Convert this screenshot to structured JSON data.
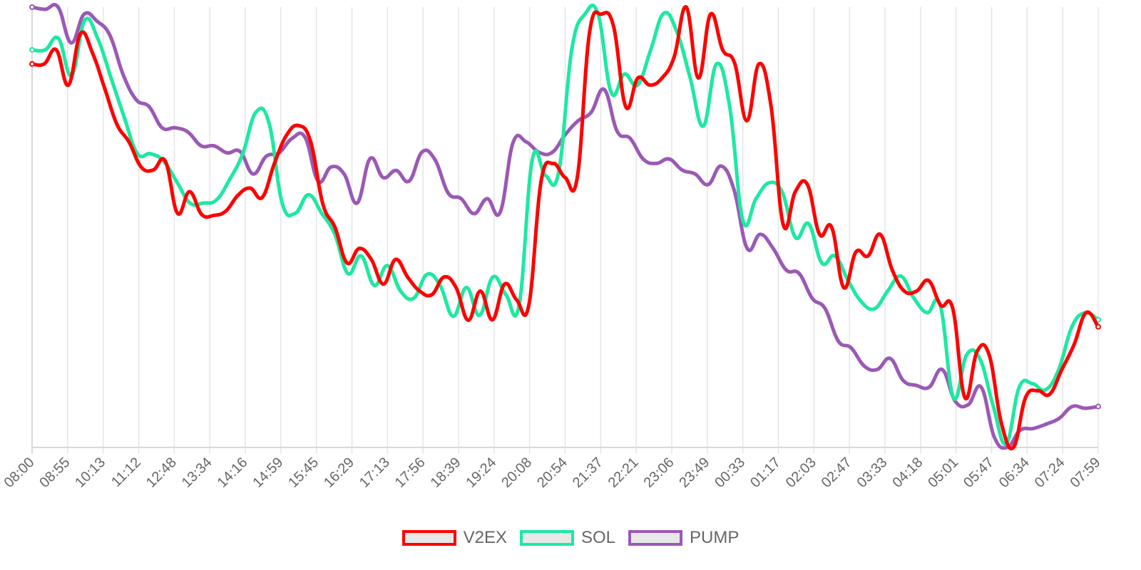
{
  "chart_data": {
    "type": "line",
    "x_tick_labels": [
      "08:00",
      "08:55",
      "10:13",
      "11:12",
      "12:48",
      "13:34",
      "14:16",
      "14:59",
      "15:45",
      "16:29",
      "17:13",
      "17:56",
      "18:39",
      "19:24",
      "20:08",
      "20:54",
      "21:37",
      "22:21",
      "23:06",
      "23:49",
      "00:33",
      "01:17",
      "02:03",
      "02:47",
      "03:33",
      "04:18",
      "05:01",
      "05:47",
      "06:34",
      "07:24",
      "07:59"
    ],
    "ylim": [
      0,
      100
    ],
    "grid": "vertical",
    "legend_position": "bottom",
    "series": [
      {
        "name": "V2EX",
        "color": "#ff0000",
        "values": [
          87.1,
          87.1,
          90.3,
          82.3,
          94.0,
          89.5,
          81.5,
          73.4,
          69.4,
          63.7,
          63.0,
          65.0,
          53.2,
          58.1,
          52.9,
          52.7,
          53.7,
          57.3,
          58.9,
          56.8,
          64.5,
          70.9,
          73.1,
          69.4,
          55.3,
          50.0,
          41.9,
          45.2,
          42.7,
          37.1,
          42.7,
          38.7,
          35.5,
          34.7,
          38.7,
          36.3,
          28.9,
          35.5,
          29.0,
          37.1,
          33.5,
          32.3,
          60.2,
          64.5,
          61.3,
          61.3,
          94.0,
          98.4,
          95.6,
          77.4,
          83.9,
          82.3,
          83.9,
          88.7,
          100.0,
          83.9,
          98.4,
          90.3,
          87.2,
          74.2,
          87.1,
          77.4,
          50.6,
          58.1,
          59.7,
          48.4,
          50.0,
          36.3,
          44.4,
          43.5,
          48.4,
          40.3,
          35.5,
          35.5,
          37.9,
          32.3,
          31.5,
          11.3,
          21.8,
          21.0,
          5.6,
          0.0,
          11.3,
          12.9,
          12.1,
          17.7,
          23.3,
          30.6,
          27.4
        ]
      },
      {
        "name": "SOL",
        "color": "#1de9a0",
        "values": [
          90.3,
          90.3,
          92.9,
          84.5,
          97.0,
          92.8,
          83.9,
          75.0,
          66.7,
          66.7,
          65.0,
          60.3,
          55.5,
          55.5,
          56.2,
          60.8,
          66.7,
          76.1,
          73.7,
          55.5,
          53.2,
          57.4,
          53.2,
          48.4,
          39.5,
          43.5,
          36.8,
          41.3,
          35.5,
          33.9,
          39.3,
          36.8,
          29.8,
          36.3,
          30.0,
          38.7,
          34.7,
          32.3,
          65.3,
          61.8,
          62.4,
          90.3,
          98.4,
          98.4,
          80.6,
          84.8,
          82.3,
          90.3,
          98.6,
          94.3,
          83.9,
          73.0,
          87.1,
          77.4,
          51.6,
          56.5,
          60.1,
          57.9,
          47.7,
          50.8,
          41.9,
          43.5,
          37.9,
          33.1,
          31.5,
          35.5,
          38.9,
          33.9,
          30.6,
          32.3,
          11.3,
          21.0,
          20.2,
          9.7,
          0.8,
          13.7,
          14.5,
          13.1,
          17.7,
          27.4,
          30.6,
          29.0
        ]
      },
      {
        "name": "PUMP",
        "color": "#9b59b6",
        "values": [
          100.0,
          99.5,
          100.0,
          91.9,
          98.4,
          96.8,
          93.5,
          84.7,
          79.0,
          77.4,
          72.6,
          72.6,
          71.6,
          68.5,
          68.5,
          66.9,
          67.2,
          62.1,
          66.1,
          66.9,
          70.2,
          70.4,
          60.5,
          63.7,
          62.1,
          55.5,
          65.6,
          61.3,
          62.9,
          60.5,
          67.1,
          65.3,
          57.8,
          56.5,
          53.1,
          56.5,
          53.4,
          69.3,
          69.4,
          67.0,
          67.0,
          71.0,
          74.2,
          76.1,
          81.3,
          71.8,
          70.2,
          65.5,
          64.5,
          65.5,
          63.0,
          62.1,
          59.7,
          63.9,
          58.4,
          45.2,
          48.4,
          45.2,
          40.3,
          39.5,
          33.9,
          31.5,
          24.2,
          22.6,
          18.5,
          17.7,
          20.2,
          15.2,
          14.1,
          13.7,
          17.7,
          10.5,
          9.7,
          13.7,
          2.4,
          0.0,
          3.9,
          4.3,
          5.3,
          6.6,
          9.3,
          8.9,
          9.3
        ]
      }
    ]
  }
}
